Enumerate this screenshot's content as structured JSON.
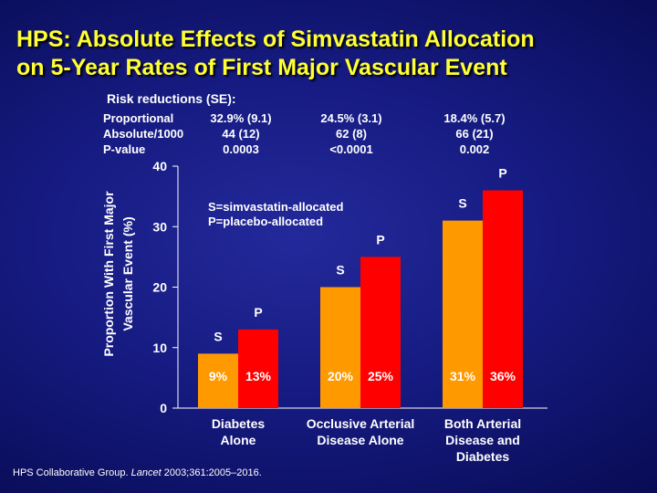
{
  "title_lines": [
    "HPS: Absolute Effects of Simvastatin Allocation",
    "on 5-Year Rates of First Major Vascular Event"
  ],
  "risk_table": {
    "heading": "Risk reductions (SE):",
    "row_labels": [
      "Proportional",
      "Absolute/1000",
      "P-value"
    ],
    "columns": [
      [
        "32.9% (9.1)",
        "44 (12)",
        "0.0003"
      ],
      [
        "24.5% (3.1)",
        "62 (8)",
        "<0.0001"
      ],
      [
        "18.4% (5.7)",
        "66 (21)",
        "0.002"
      ]
    ]
  },
  "chart_data": {
    "type": "bar",
    "ylabel_lines": [
      "Proportion With First Major",
      "Vascular Event (%)"
    ],
    "ylim": [
      0,
      40
    ],
    "y_ticks": [
      0,
      10,
      20,
      30,
      40
    ],
    "categories": [
      [
        "Diabetes",
        "Alone"
      ],
      [
        "Occlusive Arterial",
        "Disease Alone"
      ],
      [
        "Both Arterial",
        "Disease and",
        "Diabetes"
      ]
    ],
    "series": [
      {
        "name": "S",
        "color": "#ff9900",
        "values": [
          9,
          20,
          31
        ],
        "labels": [
          "9%",
          "20%",
          "31%"
        ]
      },
      {
        "name": "P",
        "color": "#ff0000",
        "values": [
          13,
          25,
          36
        ],
        "labels": [
          "13%",
          "25%",
          "36%"
        ]
      }
    ],
    "legend_lines": [
      "S=simvastatin-allocated",
      "P=placebo-allocated"
    ],
    "grid": false
  },
  "citation": {
    "prefix": "HPS Collaborative Group. ",
    "journal": "Lancet",
    "suffix": " 2003;361:2005–2016."
  }
}
